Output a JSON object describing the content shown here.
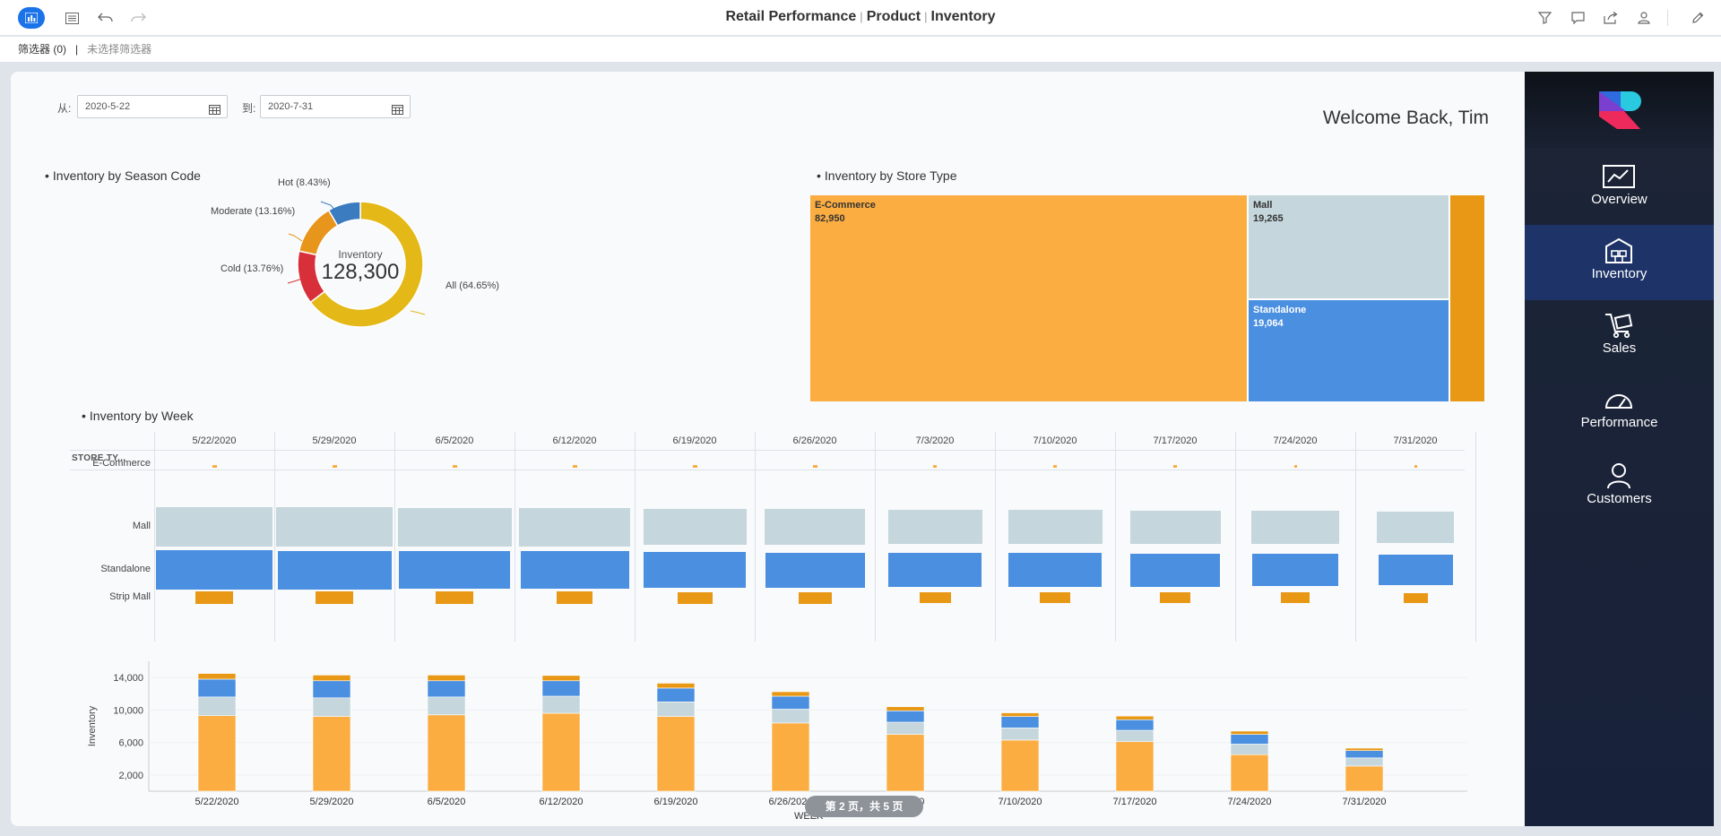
{
  "toolbar": {
    "title_parts": [
      "Retail Performance",
      "Product",
      "Inventory"
    ],
    "separator": "|",
    "icons": [
      "app-icon",
      "outline-icon",
      "undo-icon",
      "redo-icon",
      "filter-icon",
      "comment-icon",
      "share-icon",
      "user-icon",
      "edit-icon"
    ]
  },
  "filterbar": {
    "count_label": "筛选器 (0)",
    "pipe": "|",
    "none_label": "未选择筛选器"
  },
  "dates": {
    "from_label": "从:",
    "from_value": "2020-5-22",
    "to_label": "到:",
    "to_value": "2020-7-31"
  },
  "welcome": "Welcome Back, Tim",
  "panels": {
    "season": "Inventory by Season Code",
    "store_type": "Inventory by Store Type",
    "week": "Inventory by Week"
  },
  "donut": {
    "center_label": "Inventory",
    "center_value": "128,300",
    "colors": {
      "All": "#e3b817",
      "Cold": "#d8303a",
      "Moderate": "#e8951c",
      "Hot": "#3b7bbf"
    }
  },
  "treemap": {
    "colors": {
      "E-Commerce": "#fbad42",
      "Mall": "#c5d6dc",
      "Standalone": "#4a8fe0",
      "Strip Mall": "#e89815"
    }
  },
  "grid": {
    "corner_label": "STORE TY...",
    "rows": [
      "E-Commerce",
      "Mall",
      "Standalone",
      "Strip Mall"
    ]
  },
  "pager": "第 2 页，共 5 页",
  "nav": [
    {
      "label": "Overview",
      "icon": "chart-line-icon"
    },
    {
      "label": "Inventory",
      "icon": "warehouse-icon",
      "active": true
    },
    {
      "label": "Sales",
      "icon": "cart-icon"
    },
    {
      "label": "Performance",
      "icon": "gauge-icon"
    },
    {
      "label": "Customers",
      "icon": "person-icon"
    }
  ],
  "chart_data": [
    {
      "type": "pie",
      "title": "Inventory by Season Code",
      "categories": [
        "All",
        "Cold",
        "Moderate",
        "Hot"
      ],
      "values": [
        64.65,
        13.76,
        13.16,
        8.43
      ],
      "labels": [
        "All (64.65%)",
        "Cold (13.76%)",
        "Moderate (13.16%)",
        "Hot (8.43%)"
      ],
      "total": "128,300"
    },
    {
      "type": "treemap",
      "title": "Inventory by Store Type",
      "categories": [
        "E-Commerce",
        "Mall",
        "Standalone",
        "Strip Mall"
      ],
      "values": [
        82950,
        19265,
        19064,
        7021
      ],
      "value_labels": [
        "82,950",
        "19,265",
        "19,064",
        ""
      ]
    },
    {
      "type": "bar",
      "title": "Inventory by Week",
      "categories": [
        "5/22/2020",
        "5/29/2020",
        "6/5/2020",
        "6/12/2020",
        "6/19/2020",
        "6/26/2020",
        "7/3/2020",
        "7/10/2020",
        "7/17/2020",
        "7/24/2020",
        "7/31/2020"
      ],
      "series": [
        {
          "name": "E-Commerce",
          "color": "#fbad42",
          "values": [
            9300,
            9200,
            9400,
            9600,
            9200,
            8400,
            7000,
            6300,
            6100,
            4500,
            3100
          ]
        },
        {
          "name": "Mall",
          "color": "#c5d6dc",
          "values": [
            2300,
            2300,
            2200,
            2100,
            1800,
            1700,
            1500,
            1500,
            1400,
            1300,
            1000
          ]
        },
        {
          "name": "Standalone",
          "color": "#4a8fe0",
          "values": [
            2200,
            2100,
            2000,
            1900,
            1700,
            1600,
            1400,
            1400,
            1300,
            1200,
            900
          ]
        },
        {
          "name": "Strip Mall",
          "color": "#e89815",
          "values": [
            700,
            700,
            700,
            650,
            600,
            550,
            500,
            450,
            450,
            400,
            300
          ]
        }
      ],
      "ylabel": "Inventory",
      "xlabel": "WEEK",
      "yticks": [
        "2,000",
        "6,000",
        "10,000",
        "14,000"
      ],
      "ytick_values": [
        2000,
        6000,
        10000,
        14000
      ],
      "ylim": [
        0,
        16000
      ]
    }
  ]
}
